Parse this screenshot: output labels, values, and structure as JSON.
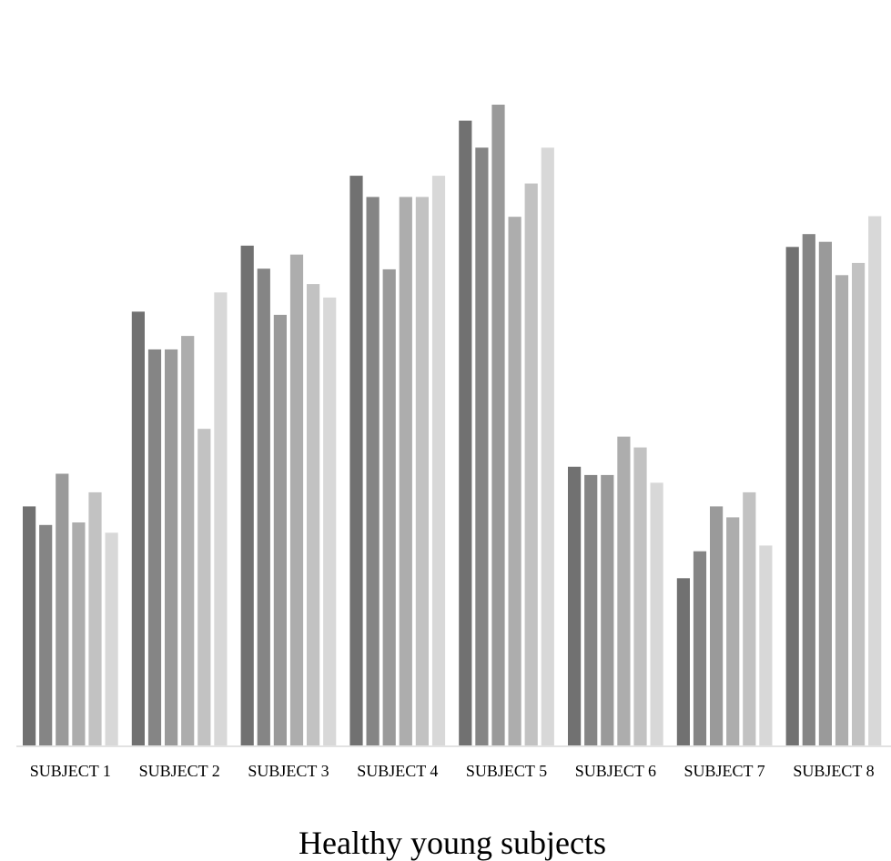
{
  "chart_data": {
    "type": "bar",
    "title": "",
    "xlabel": "Healthy young subjects",
    "ylabel": "",
    "ylim": [
      0,
      100
    ],
    "grid": false,
    "legend": "none",
    "categories": [
      "SUBJECT 1",
      "SUBJECT 2",
      "SUBJECT 3",
      "SUBJECT 4",
      "SUBJECT 5",
      "SUBJECT 6",
      "SUBJECT 7",
      "SUBJECT 8"
    ],
    "series": [
      {
        "color": "#717171",
        "values": [
          37.3,
          67.7,
          78.0,
          88.9,
          97.5,
          43.5,
          26.1,
          77.8
        ]
      },
      {
        "color": "#858585",
        "values": [
          34.4,
          61.8,
          74.4,
          85.6,
          93.3,
          42.2,
          30.3,
          79.8
        ]
      },
      {
        "color": "#9a9a9a",
        "values": [
          42.4,
          61.8,
          67.2,
          74.3,
          100.0,
          42.2,
          37.3,
          78.6
        ]
      },
      {
        "color": "#adadad",
        "values": [
          34.8,
          63.9,
          76.6,
          85.6,
          82.5,
          48.2,
          35.6,
          73.4
        ]
      },
      {
        "color": "#c2c2c2",
        "values": [
          39.5,
          49.4,
          72.0,
          85.6,
          87.7,
          46.5,
          39.5,
          75.3
        ]
      },
      {
        "color": "#d8d8d8",
        "values": [
          33.2,
          70.7,
          69.9,
          88.9,
          93.3,
          41.0,
          31.2,
          82.6
        ]
      }
    ]
  }
}
